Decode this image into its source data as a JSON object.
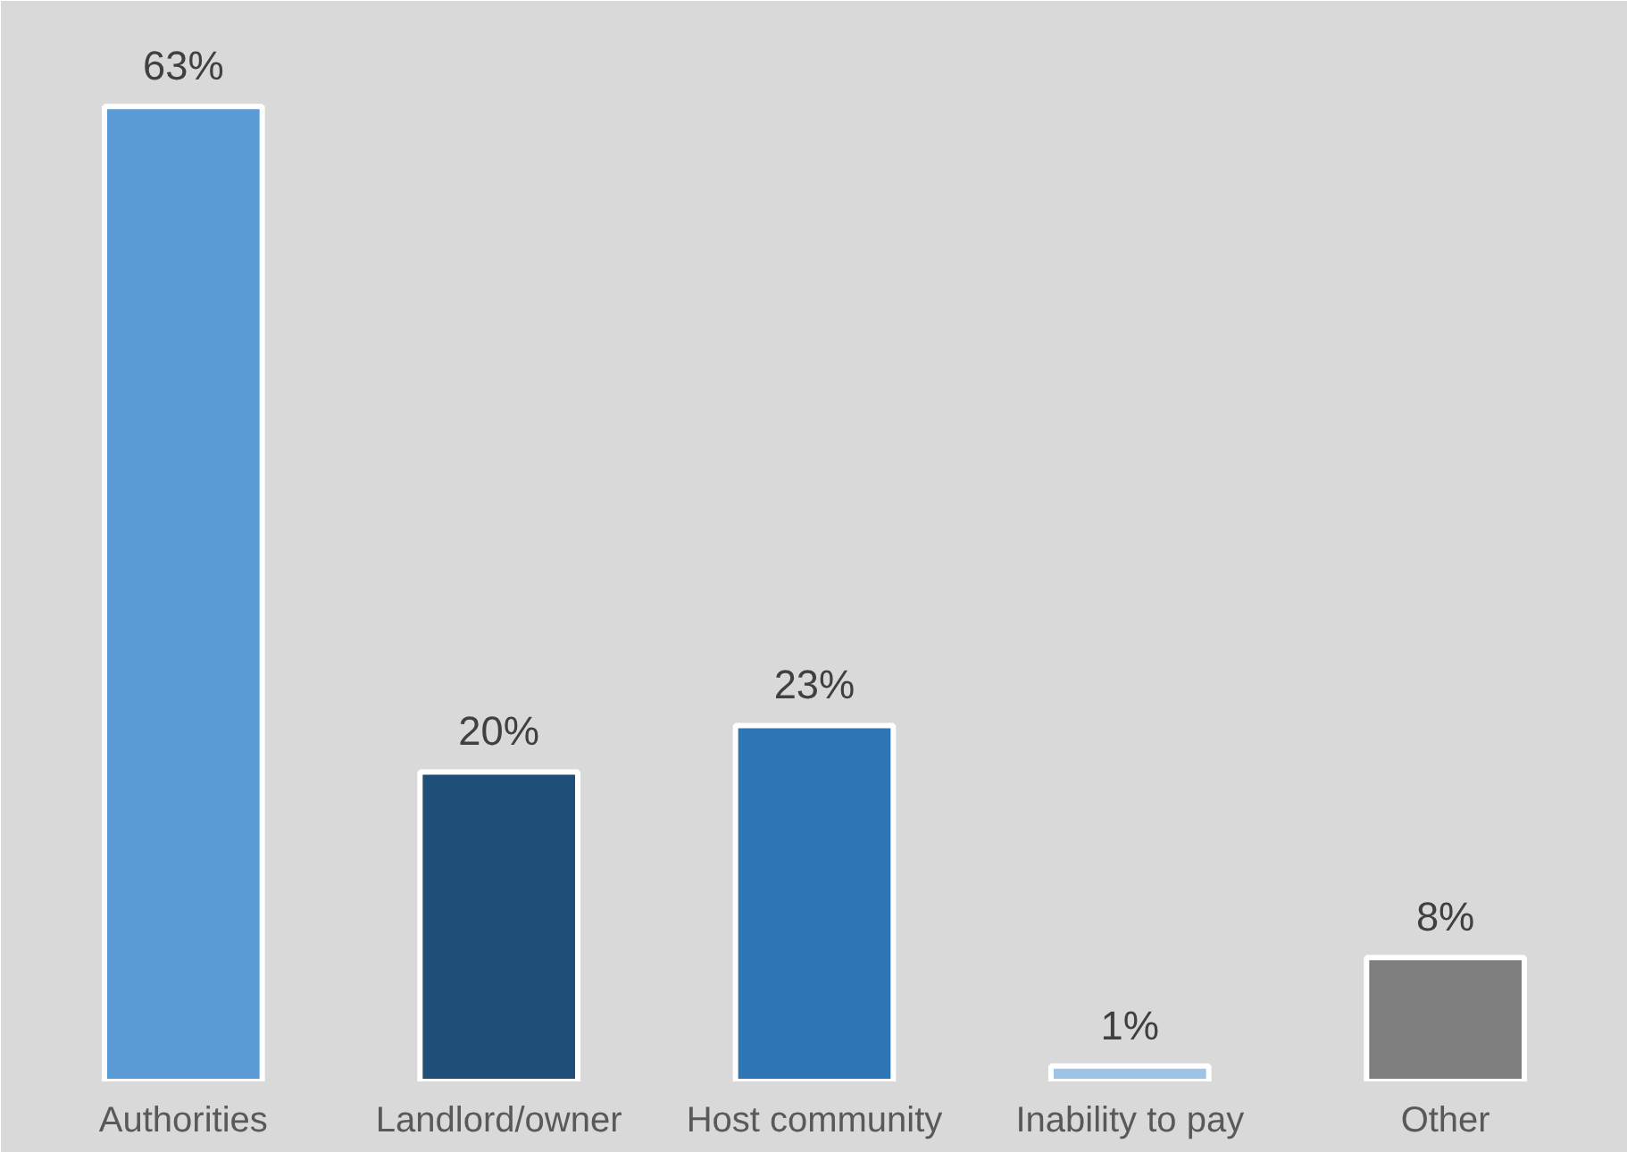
{
  "chart_data": {
    "type": "bar",
    "categories": [
      "Authorities",
      "Landlord/owner",
      "Host community",
      "Inability to pay",
      "Other"
    ],
    "values": [
      63,
      20,
      23,
      1,
      8
    ],
    "value_labels": [
      "63%",
      "20%",
      "23%",
      "1%",
      "8%"
    ],
    "colors": [
      "#5b9bd5",
      "#1f4e79",
      "#2e75b6",
      "#9dc3e6",
      "#7f7f7f"
    ]
  }
}
